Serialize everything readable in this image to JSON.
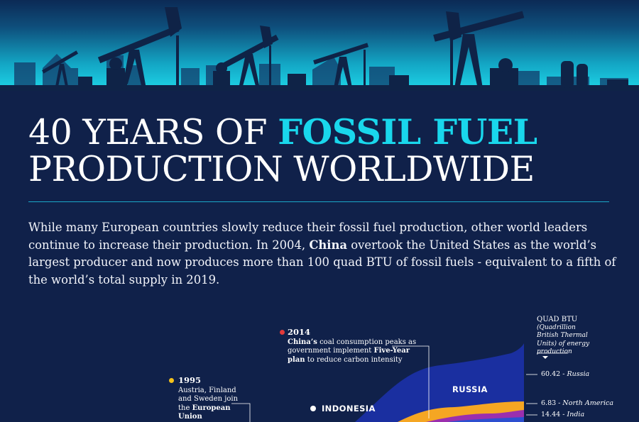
{
  "header": {
    "title_line1_prefix": "40 YEARS OF ",
    "title_line1_highlight": "FOSSIL FUEL",
    "title_line2": "PRODUCTION WORLDWIDE"
  },
  "intro": {
    "part1": "While many European countries slowly reduce their fossil fuel production, other world leaders continue to increase their production. In 2004, ",
    "bold": "China",
    "part2": " overtook the United States as the world’s largest producer and now produces more than 100 quad BTU of fossil fuels - equivalent to a fifth of the world’s total supply in 2019."
  },
  "annotations": {
    "a2014": {
      "year": "2014",
      "bold1": "China’s",
      "text1": " coal consumption peaks as government implement ",
      "bold2": "Five-Year plan",
      "text2": " to reduce carbon intensity",
      "color": "#e23a3a"
    },
    "a1995": {
      "year": "1995",
      "text1": "Austria, Finland and Sweden join the ",
      "bold": "European Union",
      "color": "#f5c21b"
    },
    "indonesia": {
      "label": "INDONESIA",
      "color": "#ffffff"
    }
  },
  "unit": {
    "title": "QUAD BTU",
    "sub": "(Quadrillion British Thermal Units) of energy production"
  },
  "values": [
    {
      "value": "60.42",
      "sep": " - ",
      "region": "Russia"
    },
    {
      "value": "6.83",
      "sep": " - ",
      "region": "North America"
    },
    {
      "value": "14.44",
      "sep": " - ",
      "region": "India"
    }
  ],
  "regions": {
    "russia": "RUSSIA"
  },
  "colors": {
    "background": "#10214a",
    "accent": "#19d7ec",
    "russia": "#1a2fa0",
    "north_america": "#f5a623",
    "india": "#9b2fae"
  }
}
